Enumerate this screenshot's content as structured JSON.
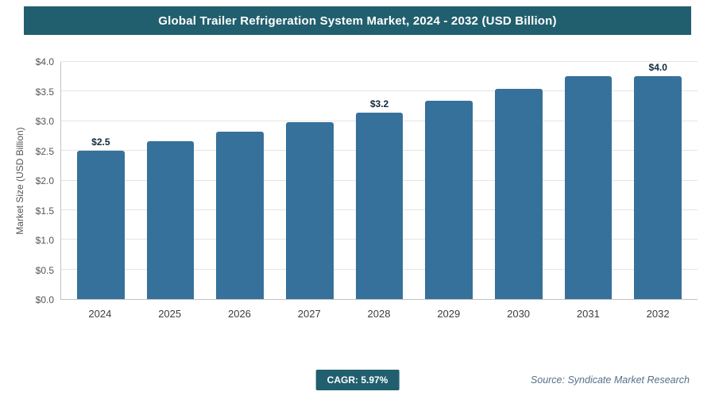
{
  "chart_data": {
    "type": "bar",
    "title": "Global Trailer Refrigeration System Market, 2024 - 2032 (USD Billion)",
    "categories": [
      "2024",
      "2025",
      "2026",
      "2027",
      "2028",
      "2029",
      "2030",
      "2031",
      "2032"
    ],
    "values": [
      2.5,
      2.66,
      2.82,
      2.99,
      3.15,
      3.34,
      3.55,
      3.76,
      3.97
    ],
    "bar_labels": [
      "$2.5",
      "",
      "",
      "",
      "$3.2",
      "",
      "",
      "",
      "$4.0"
    ],
    "xlabel": "",
    "ylabel": "Market Size (USD Billion)",
    "ylim": [
      0,
      4.0
    ],
    "ytick_step": 0.5,
    "ytick_labels": [
      "$0.0",
      "$0.5",
      "$1.0",
      "$1.5",
      "$2.0",
      "$2.5",
      "$3.0",
      "$3.5",
      "$4.0"
    ],
    "grid": "horizontal",
    "legend": "none",
    "bar_color": "#36719b"
  },
  "colors": {
    "header_bg": "#215f6e",
    "badge_bg": "#215f6e",
    "bar": "#36719b"
  },
  "footer": {
    "cagr_label": "CAGR: 5.97%",
    "source": "Source: Syndicate Market Research"
  }
}
